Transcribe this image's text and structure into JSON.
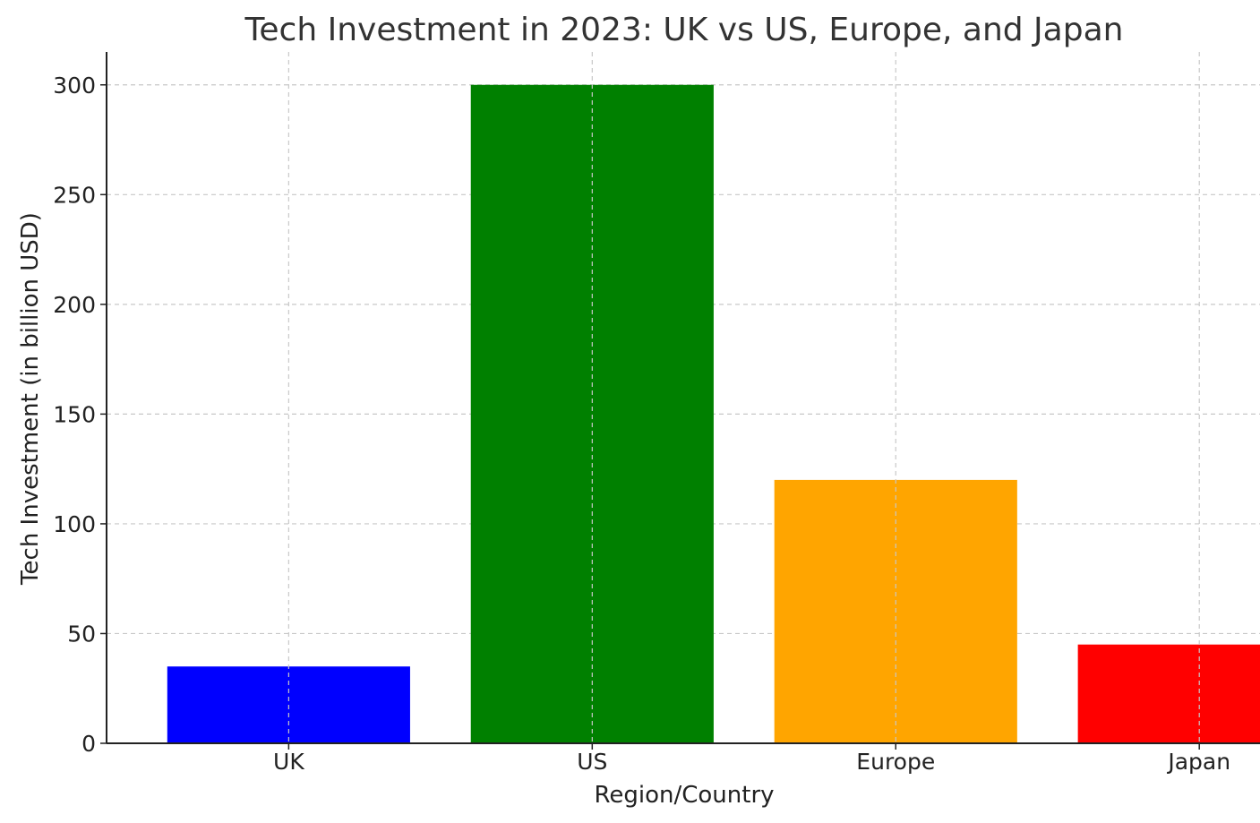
{
  "chart_data": {
    "type": "bar",
    "title": "Tech Investment in 2023: UK vs US, Europe, and Japan",
    "xlabel": "Region/Country",
    "ylabel": "Tech Investment (in billion USD)",
    "categories": [
      "UK",
      "US",
      "Europe",
      "Japan"
    ],
    "values": [
      35,
      300,
      120,
      45
    ],
    "colors": [
      "#0000ff",
      "#008000",
      "#ffa500",
      "#ff0000"
    ],
    "ylim": [
      0,
      315
    ],
    "yticks": [
      0,
      50,
      100,
      150,
      200,
      250,
      300
    ],
    "grid": true
  }
}
